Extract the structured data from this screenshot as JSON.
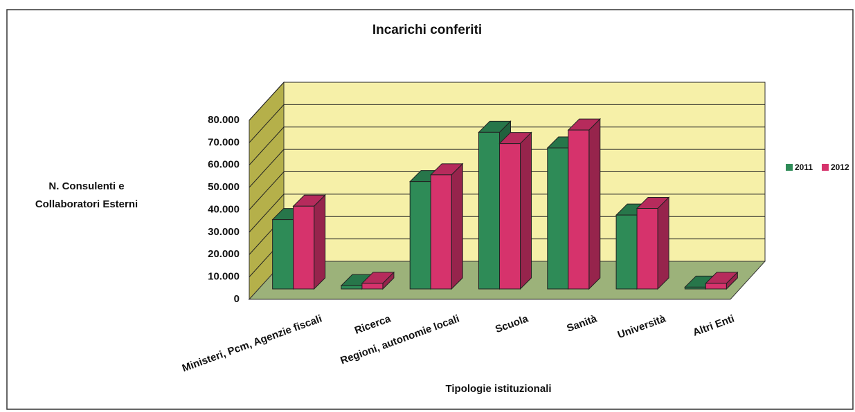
{
  "chart_data": {
    "type": "bar3d",
    "title": "Incarichi conferiti",
    "x_label": "Tipologie istituzionali",
    "y_label": [
      "N. Consulenti e",
      "Collaboratori Esterni"
    ],
    "categories": [
      "Ministeri, Pcm, Agenzie fiscali",
      "Ricerca",
      "Regioni, autonomie locali",
      "Scuola",
      "Sanità",
      "Università",
      "Altri Enti"
    ],
    "series": [
      {
        "name": "2011",
        "color": "#2e8b57",
        "values": [
          31000,
          1500,
          48000,
          70000,
          63000,
          33000,
          800
        ]
      },
      {
        "name": "2012",
        "color": "#d6336c",
        "values": [
          37000,
          2500,
          51000,
          65000,
          71000,
          36000,
          2500
        ]
      }
    ],
    "ylim": [
      0,
      80000
    ],
    "yticks": [
      {
        "value": 0,
        "label": "0"
      },
      {
        "value": 10000,
        "label": "10.000"
      },
      {
        "value": 20000,
        "label": "20.000"
      },
      {
        "value": 30000,
        "label": "30.000"
      },
      {
        "value": 40000,
        "label": "40.000"
      },
      {
        "value": 50000,
        "label": "50.000"
      },
      {
        "value": 60000,
        "label": "60.000"
      },
      {
        "value": 70000,
        "label": "70.000"
      },
      {
        "value": 80000,
        "label": "80.000"
      }
    ],
    "grid": true,
    "legend": "right"
  }
}
